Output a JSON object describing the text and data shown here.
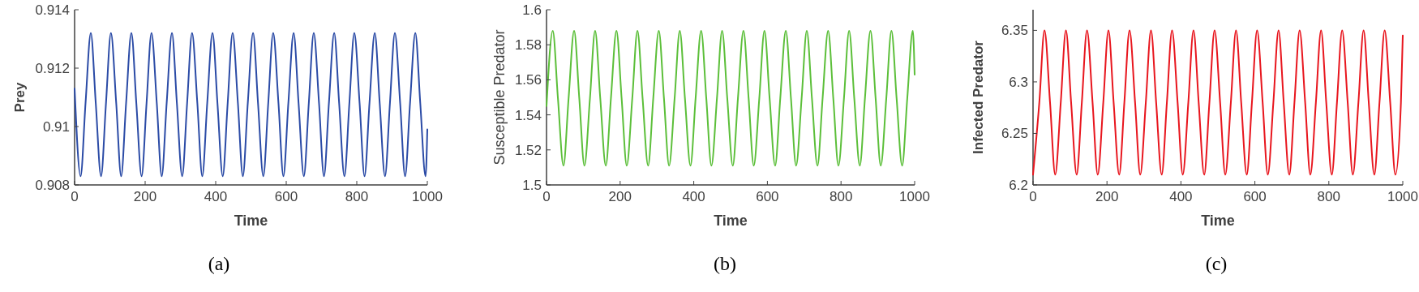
{
  "chart_data": [
    {
      "type": "line",
      "xlabel": "Time",
      "ylabel": "Prey",
      "annotations": [
        "(a)"
      ],
      "xlim": [
        0,
        1000
      ],
      "ylim": [
        0.908,
        0.914
      ],
      "xticks": [
        0,
        200,
        400,
        600,
        800,
        1000
      ],
      "yticks": [
        0.908,
        0.91,
        0.912,
        0.914
      ],
      "x": [
        0,
        17,
        31,
        46,
        60,
        75,
        89,
        103,
        118,
        132,
        146,
        161,
        175,
        190,
        204,
        218,
        233,
        247,
        261,
        276,
        290,
        305,
        319,
        333,
        348,
        362,
        376,
        391,
        405,
        420,
        434,
        448,
        463,
        477,
        491,
        506,
        520,
        535,
        549,
        563,
        578,
        592,
        606,
        621,
        635,
        650,
        664,
        678,
        693,
        707,
        721,
        736,
        750,
        765,
        779,
        793,
        808,
        822,
        836,
        851,
        865,
        880,
        894,
        908,
        923,
        937,
        951,
        966,
        980,
        995,
        1000
      ],
      "series": [
        {
          "color": "#2b4ba6",
          "values": [
            0.9113,
            0.9083,
            0.9108,
            0.9132,
            0.9108,
            0.9083,
            0.9108,
            0.9132,
            0.9108,
            0.9083,
            0.9108,
            0.9132,
            0.9108,
            0.9083,
            0.9108,
            0.9132,
            0.9108,
            0.9083,
            0.9108,
            0.9132,
            0.9108,
            0.9083,
            0.9108,
            0.9132,
            0.9108,
            0.9083,
            0.9108,
            0.9132,
            0.9108,
            0.9083,
            0.9108,
            0.9132,
            0.9108,
            0.9083,
            0.9108,
            0.9132,
            0.9108,
            0.9083,
            0.9108,
            0.9132,
            0.9108,
            0.9083,
            0.9108,
            0.9132,
            0.9108,
            0.9083,
            0.9108,
            0.9132,
            0.9108,
            0.9083,
            0.9108,
            0.9132,
            0.9108,
            0.9083,
            0.9108,
            0.9132,
            0.9108,
            0.9083,
            0.9108,
            0.9132,
            0.9108,
            0.9083,
            0.9108,
            0.9132,
            0.9108,
            0.9083,
            0.9108,
            0.9132,
            0.9108,
            0.9083,
            0.9099
          ]
        }
      ]
    },
    {
      "type": "line",
      "xlabel": "Time",
      "ylabel": "Susceptible Predator",
      "annotations": [
        "(b)"
      ],
      "xlim": [
        0,
        1000
      ],
      "ylim": [
        1.5,
        1.6
      ],
      "xticks": [
        0,
        200,
        400,
        600,
        800,
        1000
      ],
      "yticks": [
        1.5,
        1.52,
        1.54,
        1.56,
        1.58,
        1.6
      ],
      "x": [
        0,
        17,
        31,
        46,
        60,
        75,
        89,
        103,
        118,
        132,
        146,
        161,
        175,
        190,
        204,
        218,
        233,
        247,
        261,
        276,
        290,
        305,
        319,
        333,
        348,
        362,
        376,
        391,
        405,
        420,
        434,
        448,
        463,
        477,
        491,
        506,
        520,
        535,
        549,
        563,
        578,
        592,
        606,
        621,
        635,
        650,
        664,
        678,
        693,
        707,
        721,
        736,
        750,
        765,
        779,
        793,
        808,
        822,
        836,
        851,
        865,
        880,
        894,
        908,
        923,
        937,
        951,
        966,
        980,
        995,
        1000
      ],
      "series": [
        {
          "color": "#5cbf3a",
          "values": [
            1.545,
            1.588,
            1.5495,
            1.511,
            1.5495,
            1.588,
            1.5495,
            1.511,
            1.5495,
            1.588,
            1.5495,
            1.511,
            1.5495,
            1.588,
            1.5495,
            1.511,
            1.5495,
            1.588,
            1.5495,
            1.511,
            1.5495,
            1.588,
            1.5495,
            1.511,
            1.5495,
            1.588,
            1.5495,
            1.511,
            1.5495,
            1.588,
            1.5495,
            1.511,
            1.5495,
            1.588,
            1.5495,
            1.511,
            1.5495,
            1.588,
            1.5495,
            1.511,
            1.5495,
            1.588,
            1.5495,
            1.511,
            1.5495,
            1.588,
            1.5495,
            1.511,
            1.5495,
            1.588,
            1.5495,
            1.511,
            1.5495,
            1.588,
            1.5495,
            1.511,
            1.5495,
            1.588,
            1.5495,
            1.511,
            1.5495,
            1.588,
            1.5495,
            1.511,
            1.5495,
            1.588,
            1.5495,
            1.511,
            1.5495,
            1.588,
            1.563
          ]
        }
      ]
    },
    {
      "type": "line",
      "xlabel": "Time",
      "ylabel": "Infected Predator",
      "annotations": [
        "(c)"
      ],
      "xlim": [
        0,
        1000
      ],
      "ylim": [
        6.2,
        6.37
      ],
      "xticks": [
        0,
        200,
        400,
        600,
        800,
        1000
      ],
      "yticks": [
        6.2,
        6.25,
        6.3,
        6.35
      ],
      "x": [
        0,
        17,
        31,
        46,
        60,
        75,
        89,
        103,
        118,
        132,
        146,
        161,
        175,
        190,
        204,
        218,
        233,
        247,
        261,
        276,
        290,
        305,
        319,
        333,
        348,
        362,
        376,
        391,
        405,
        420,
        434,
        448,
        463,
        477,
        491,
        506,
        520,
        535,
        549,
        563,
        578,
        592,
        606,
        621,
        635,
        650,
        664,
        678,
        693,
        707,
        721,
        736,
        750,
        765,
        779,
        793,
        808,
        822,
        836,
        851,
        865,
        880,
        894,
        908,
        923,
        937,
        951,
        966,
        980,
        995,
        1000
      ],
      "series": [
        {
          "color": "#e8161e",
          "values": [
            6.21,
            6.28,
            6.35,
            6.28,
            6.21,
            6.28,
            6.35,
            6.28,
            6.21,
            6.28,
            6.35,
            6.28,
            6.21,
            6.28,
            6.35,
            6.28,
            6.21,
            6.28,
            6.35,
            6.28,
            6.21,
            6.28,
            6.35,
            6.28,
            6.21,
            6.28,
            6.35,
            6.28,
            6.21,
            6.28,
            6.35,
            6.28,
            6.21,
            6.28,
            6.35,
            6.28,
            6.21,
            6.28,
            6.35,
            6.28,
            6.21,
            6.28,
            6.35,
            6.28,
            6.21,
            6.28,
            6.35,
            6.28,
            6.21,
            6.28,
            6.35,
            6.28,
            6.21,
            6.28,
            6.35,
            6.28,
            6.21,
            6.28,
            6.35,
            6.28,
            6.21,
            6.28,
            6.35,
            6.28,
            6.21,
            6.28,
            6.35,
            6.28,
            6.21,
            6.28,
            6.345
          ]
        }
      ]
    }
  ]
}
